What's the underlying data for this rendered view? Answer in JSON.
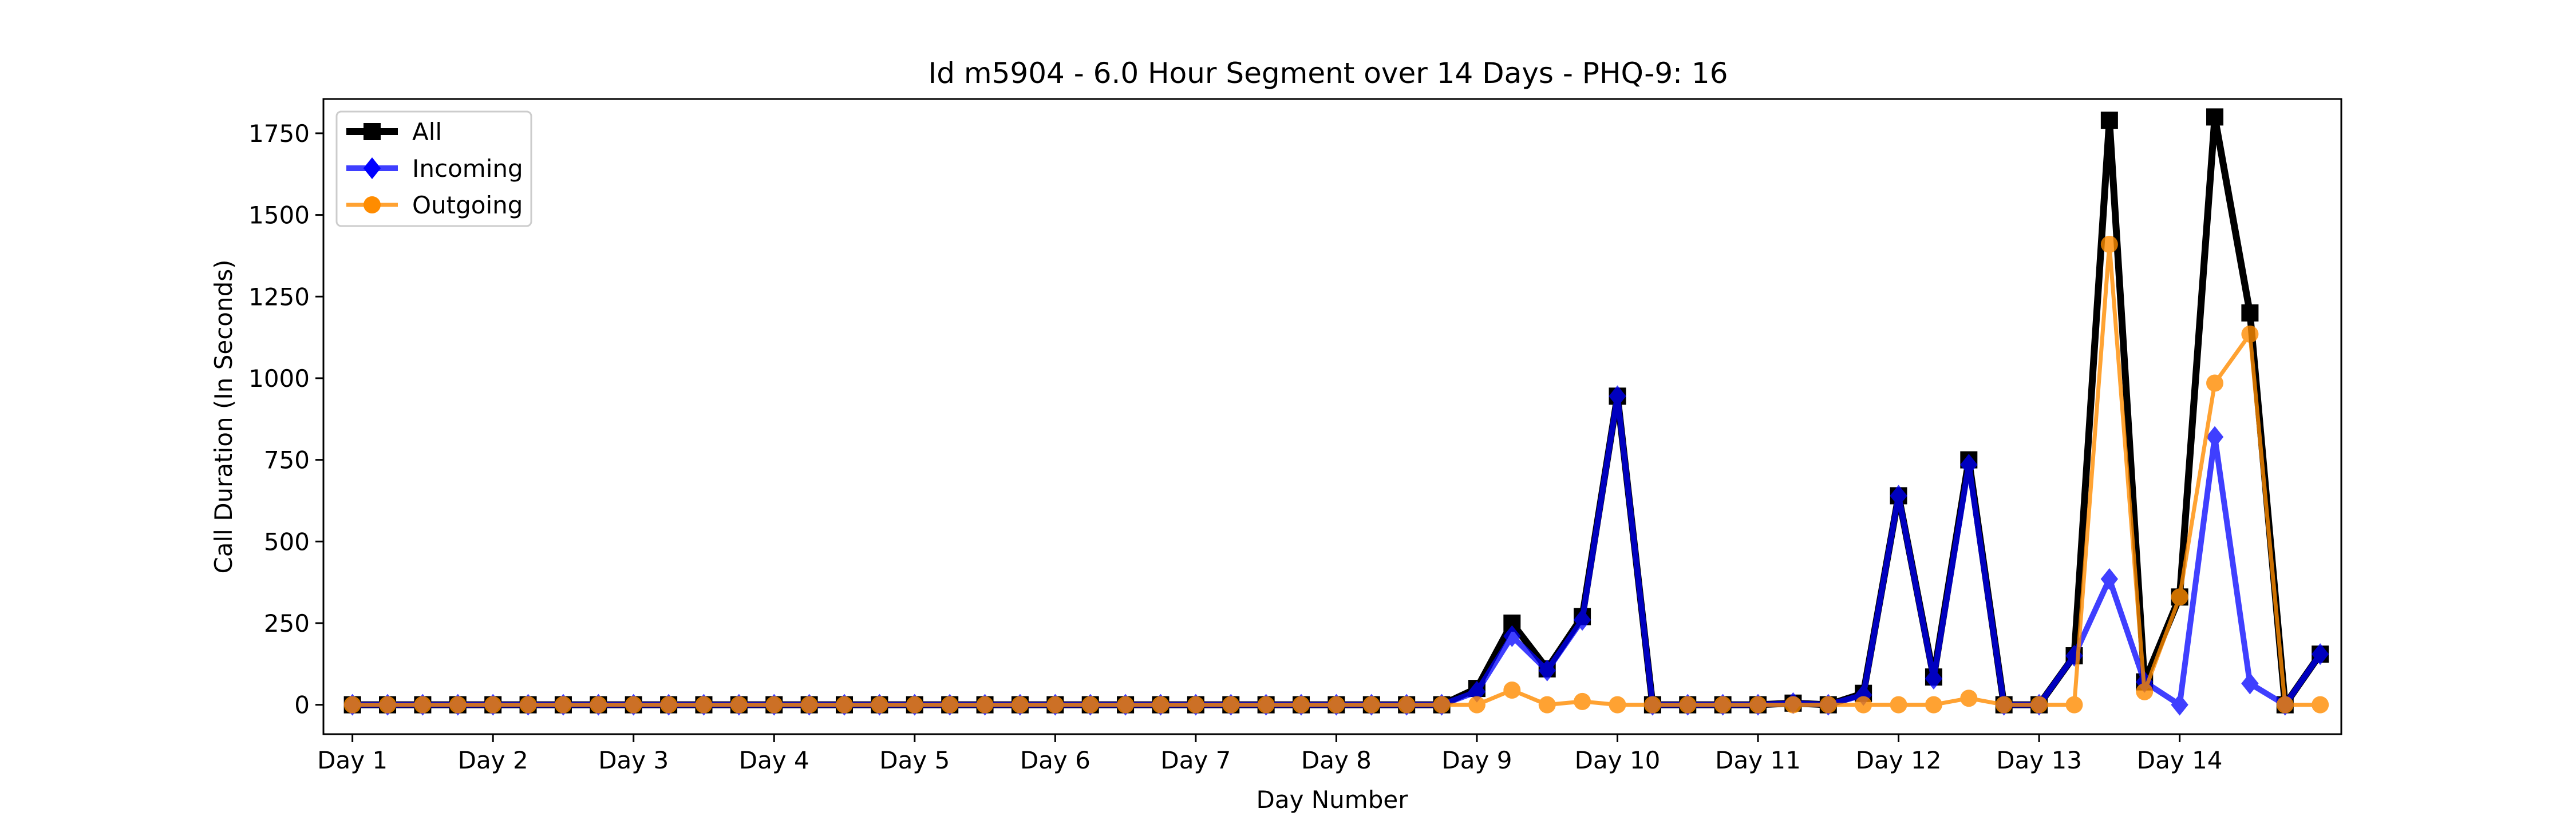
{
  "chart_data": {
    "type": "line",
    "title": "Id m5904 - 6.0 Hour Segment over 14 Days - PHQ-9: 16",
    "xlabel": "Day Number",
    "ylabel": "Call Duration (In Seconds)",
    "ylim": [
      -90,
      1855
    ],
    "yticks": [
      0,
      250,
      500,
      750,
      1000,
      1250,
      1500,
      1750
    ],
    "xlim": [
      -0.825,
      0.6
    ],
    "x_tick_labels": [
      "Day 1",
      "Day 2",
      "Day 3",
      "Day 4",
      "Day 5",
      "Day 6",
      "Day 7",
      "Day 8",
      "Day 9",
      "Day 10",
      "Day 11",
      "Day 12",
      "Day 13",
      "Day 14"
    ],
    "grid": false,
    "legend_position": "upper-left",
    "series": [
      {
        "name": "All",
        "color": "#000000",
        "marker": "square",
        "values": [
          0,
          0,
          0,
          0,
          0,
          0,
          0,
          0,
          0,
          0,
          0,
          0,
          0,
          0,
          0,
          0,
          0,
          0,
          0,
          0,
          0,
          0,
          0,
          0,
          0,
          0,
          0,
          0,
          0,
          0,
          0,
          0,
          50,
          250,
          110,
          270,
          945,
          0,
          0,
          0,
          0,
          5,
          0,
          35,
          640,
          85,
          750,
          0,
          0,
          150,
          1790,
          70,
          330,
          1800,
          1200,
          0,
          155
        ]
      },
      {
        "name": "Incoming",
        "color": "#0000ff",
        "marker": "diamond",
        "values": [
          0,
          0,
          0,
          0,
          0,
          0,
          0,
          0,
          0,
          0,
          0,
          0,
          0,
          0,
          0,
          0,
          0,
          0,
          0,
          0,
          0,
          0,
          0,
          0,
          0,
          0,
          0,
          0,
          0,
          0,
          0,
          0,
          40,
          210,
          105,
          260,
          945,
          0,
          0,
          0,
          0,
          5,
          0,
          30,
          640,
          80,
          735,
          0,
          0,
          150,
          385,
          70,
          0,
          820,
          65,
          0,
          155
        ]
      },
      {
        "name": "Outgoing",
        "color": "#ff8c00",
        "marker": "circle",
        "values": [
          0,
          0,
          0,
          0,
          0,
          0,
          0,
          0,
          0,
          0,
          0,
          0,
          0,
          0,
          0,
          0,
          0,
          0,
          0,
          0,
          0,
          0,
          0,
          0,
          0,
          0,
          0,
          0,
          0,
          0,
          0,
          0,
          0,
          45,
          0,
          10,
          0,
          0,
          0,
          0,
          0,
          0,
          0,
          0,
          0,
          0,
          20,
          0,
          0,
          0,
          1410,
          40,
          330,
          985,
          1135,
          0,
          0
        ]
      }
    ]
  }
}
